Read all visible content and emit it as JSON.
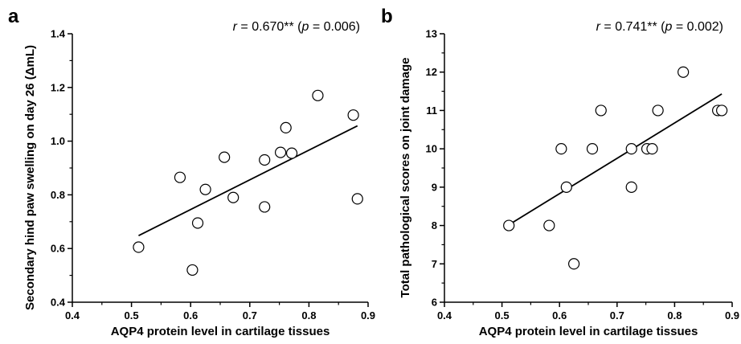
{
  "chart_data": [
    {
      "type": "scatter",
      "panel_label": "a",
      "annotation": {
        "r_symbol": "r",
        "r_text": " = 0.670** (",
        "p_symbol": "p",
        "p_text": " = 0.006)"
      },
      "xlabel": "AQP4 protein level in cartilage tissues",
      "ylabel": "Secondary hind paw swelling on day 26  (ΔmL)",
      "xlim": [
        0.4,
        0.9
      ],
      "ylim": [
        0.4,
        1.4
      ],
      "xticks": [
        "0.4",
        "0.5",
        "0.6",
        "0.7",
        "0.8",
        "0.9"
      ],
      "yticks": [
        "0.4",
        "0.6",
        "0.8",
        "1.0",
        "1.2",
        "1.4"
      ],
      "grid": false,
      "points": [
        {
          "x": 0.512,
          "y": 0.605
        },
        {
          "x": 0.582,
          "y": 0.865
        },
        {
          "x": 0.603,
          "y": 0.52
        },
        {
          "x": 0.612,
          "y": 0.695
        },
        {
          "x": 0.625,
          "y": 0.82
        },
        {
          "x": 0.657,
          "y": 0.94
        },
        {
          "x": 0.672,
          "y": 0.79
        },
        {
          "x": 0.725,
          "y": 0.93
        },
        {
          "x": 0.725,
          "y": 0.755
        },
        {
          "x": 0.752,
          "y": 0.958
        },
        {
          "x": 0.761,
          "y": 1.05
        },
        {
          "x": 0.771,
          "y": 0.955
        },
        {
          "x": 0.815,
          "y": 1.17
        },
        {
          "x": 0.875,
          "y": 1.097
        },
        {
          "x": 0.882,
          "y": 0.785
        }
      ],
      "fit_line": {
        "x": [
          0.512,
          0.882
        ],
        "y": [
          0.648,
          1.057
        ]
      }
    },
    {
      "type": "scatter",
      "panel_label": "b",
      "annotation": {
        "r_symbol": "r",
        "r_text": " = 0.741** (",
        "p_symbol": "p",
        "p_text": " = 0.002)"
      },
      "xlabel": "AQP4 protein level in cartilage tissues",
      "ylabel": "Total pathological scores on joint damage",
      "xlim": [
        0.4,
        0.9
      ],
      "ylim": [
        6,
        13
      ],
      "xticks": [
        "0.4",
        "0.5",
        "0.6",
        "0.7",
        "0.8",
        "0.9"
      ],
      "yticks": [
        "6",
        "7",
        "8",
        "9",
        "10",
        "11",
        "12",
        "13"
      ],
      "grid": false,
      "points": [
        {
          "x": 0.512,
          "y": 8
        },
        {
          "x": 0.582,
          "y": 8
        },
        {
          "x": 0.603,
          "y": 10
        },
        {
          "x": 0.612,
          "y": 9
        },
        {
          "x": 0.625,
          "y": 7
        },
        {
          "x": 0.657,
          "y": 10
        },
        {
          "x": 0.672,
          "y": 11
        },
        {
          "x": 0.725,
          "y": 10
        },
        {
          "x": 0.725,
          "y": 9
        },
        {
          "x": 0.752,
          "y": 10
        },
        {
          "x": 0.761,
          "y": 10
        },
        {
          "x": 0.771,
          "y": 11
        },
        {
          "x": 0.815,
          "y": 12
        },
        {
          "x": 0.875,
          "y": 11
        },
        {
          "x": 0.882,
          "y": 11
        }
      ],
      "fit_line": {
        "x": [
          0.512,
          0.882
        ],
        "y": [
          8.02,
          11.43
        ]
      }
    }
  ]
}
